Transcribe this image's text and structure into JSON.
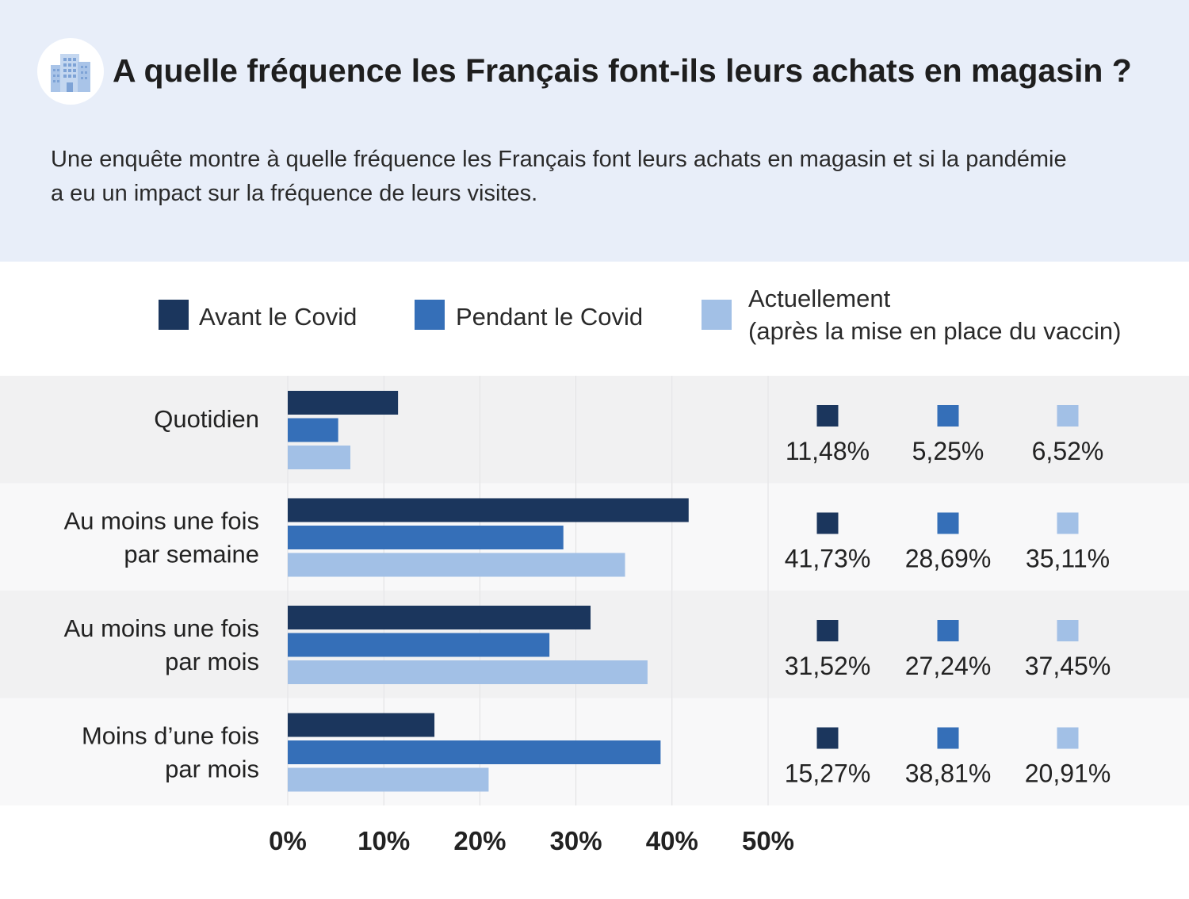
{
  "header": {
    "icon": "building-icon",
    "title": "A quelle fréquence les Français font-ils leurs achats en magasin ?",
    "subtitle": "Une enquête montre à quelle fréquence les Français font leurs achats en magasin et si la pandémie a eu un impact sur la fréquence de leurs visites."
  },
  "legend": [
    {
      "label": "Avant le Covid",
      "color": "#1b365d"
    },
    {
      "label": "Pendant le Covid",
      "color": "#356fb8"
    },
    {
      "label_line1": "Actuellement",
      "label_line2": "(après la mise en place du vaccin)",
      "color": "#a2c0e6"
    }
  ],
  "chart_data": {
    "type": "bar",
    "orientation": "horizontal",
    "title": "A quelle fréquence les Français font-ils leurs achats en magasin ?",
    "categories": [
      [
        "Quotidien"
      ],
      [
        "Au moins une fois",
        "par semaine"
      ],
      [
        "Au moins une fois",
        "par mois"
      ],
      [
        "Moins d’une fois",
        "par mois"
      ]
    ],
    "series": [
      {
        "name": "Avant le Covid",
        "color": "#1b365d",
        "values": [
          11.48,
          41.73,
          31.52,
          15.27
        ],
        "labels": [
          "11,48%",
          "41,73%",
          "31,52%",
          "15,27%"
        ]
      },
      {
        "name": "Pendant le Covid",
        "color": "#356fb8",
        "values": [
          5.25,
          28.69,
          27.24,
          38.81
        ],
        "labels": [
          "5,25%",
          "28,69%",
          "27,24%",
          "38,81%"
        ]
      },
      {
        "name": "Actuellement (après la mise en place du vaccin)",
        "color": "#a2c0e6",
        "values": [
          6.52,
          35.11,
          37.45,
          20.91
        ],
        "labels": [
          "6,52%",
          "35,11%",
          "37,45%",
          "20,91%"
        ]
      }
    ],
    "xlim": [
      0,
      50
    ],
    "xticks": [
      0,
      10,
      20,
      30,
      40,
      50
    ],
    "xtick_labels": [
      "0%",
      "10%",
      "20%",
      "30%",
      "40%",
      "50%"
    ],
    "grid": true,
    "legend_position": "top"
  }
}
